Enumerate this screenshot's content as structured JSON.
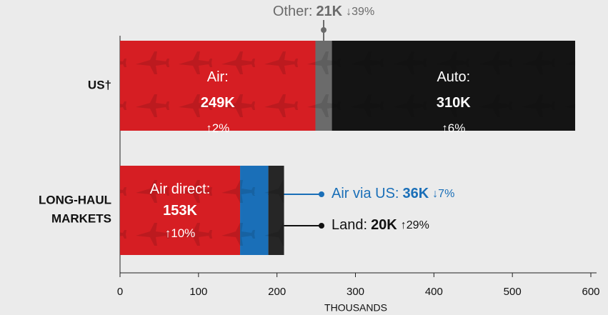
{
  "chart_data": {
    "type": "bar",
    "orientation": "horizontal",
    "stacked": true,
    "xlabel": "THOUSANDS",
    "xlim": [
      0,
      600
    ],
    "xticks": [
      0,
      100,
      200,
      300,
      400,
      500,
      600
    ],
    "categories": [
      "US†",
      "LONG-HAUL MARKETS"
    ],
    "bars": [
      {
        "segments": [
          {
            "name": "Air:",
            "value": 249,
            "value_label": "249K",
            "change_label": "↑2%",
            "color": "#d61e23"
          },
          {
            "name": "Other:",
            "value": 21,
            "value_label": "21K",
            "change_label": "↓39%",
            "color": "#6b6b6b"
          },
          {
            "name": "Auto:",
            "value": 310,
            "value_label": "310K",
            "change_label": "↑6%",
            "color": "#141414"
          }
        ]
      },
      {
        "segments": [
          {
            "name": "Air direct:",
            "value": 153,
            "value_label": "153K",
            "change_label": "↑10%",
            "color": "#d61e23"
          },
          {
            "name": "Air via US:",
            "value": 36,
            "value_label": "36K",
            "change_label": "↓7%",
            "color": "#1a6fb8"
          },
          {
            "name": "Land:",
            "value": 20,
            "value_label": "20K",
            "change_label": "↑29%",
            "color": "#262626"
          }
        ]
      }
    ]
  }
}
